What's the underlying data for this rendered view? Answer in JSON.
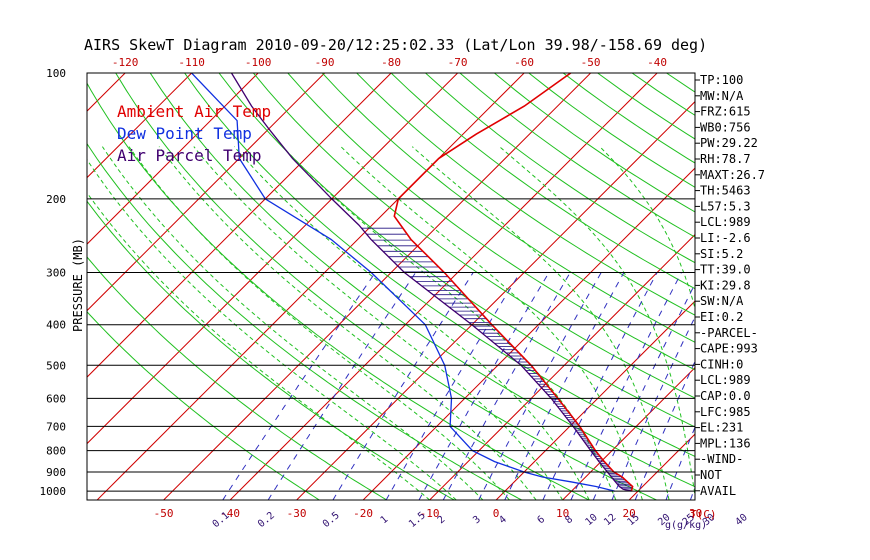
{
  "title": "AIRS SkewT Diagram 2010-09-20/12:25:02.33 (Lat/Lon 39.98/-158.69 deg)",
  "colors": {
    "temperature": "#e00000",
    "dew_point": "#1030e0",
    "parcel": "#400070",
    "isotherm": "#d00000",
    "dry_adiabat": "#20c020",
    "moist_adiabat": "#20c020",
    "mixing_ratio": "#3030c0",
    "isobar": "#000000"
  },
  "chart_data": {
    "type": "line",
    "title": "AIRS SkewT Diagram 2010-09-20/12:25:02.33 (Lat/Lon 39.98/-158.69 deg)",
    "ylabel": "PRESSURE (MB)",
    "xlabel": "T(C)",
    "mixing_ratio_unit": "g(g/kg)",
    "y_scale": "log",
    "ylim": [
      1050,
      100
    ],
    "pressure_ticks": [
      100,
      200,
      300,
      400,
      500,
      600,
      700,
      800,
      900,
      1000
    ],
    "pressure_tick_labels": [
      "100",
      "200",
      "300",
      "400",
      "500",
      "600",
      "700",
      "800",
      "900",
      "1000"
    ],
    "top_temp_ticks": [
      -120,
      -110,
      -100,
      -90,
      -80,
      -70,
      -60,
      -50,
      -40
    ],
    "top_temp_tick_labels": [
      "-120",
      "-110",
      "-100",
      "-90",
      "-80",
      "-70",
      "-60",
      "-50",
      "-40"
    ],
    "bottom_temp_ticks": [
      -50,
      -40,
      -30,
      -20,
      -10,
      0,
      10,
      20,
      30
    ],
    "bottom_temp_tick_labels": [
      "-50",
      "-40",
      "-30",
      "-20",
      "-10",
      "0",
      "10",
      "20",
      "30"
    ],
    "mixing_ratio_values": [
      0.1,
      0.2,
      0.5,
      1,
      1.5,
      2,
      3,
      4,
      6,
      8,
      10,
      12,
      15,
      20,
      25,
      30,
      40
    ],
    "mixing_ratio_labels": [
      "0.1",
      "0.2",
      "0.5",
      "1",
      "1.5",
      "2",
      "3",
      "4",
      "6",
      "8",
      "10",
      "12",
      "15",
      "20",
      "25",
      "30",
      "40"
    ],
    "legend": [
      {
        "label": "Ambient Air Temp",
        "color": "#e00000"
      },
      {
        "label": "Dew Point Temp",
        "color": "#1030e0"
      },
      {
        "label": "Air Parcel Temp",
        "color": "#400070"
      }
    ],
    "series": [
      {
        "name": "Ambient Air Temp",
        "points": [
          {
            "p": 1000,
            "t": 19.0
          },
          {
            "p": 975,
            "t": 18.5
          },
          {
            "p": 950,
            "t": 17.0
          },
          {
            "p": 925,
            "t": 15.5
          },
          {
            "p": 900,
            "t": 13.5
          },
          {
            "p": 850,
            "t": 10.5
          },
          {
            "p": 800,
            "t": 7.5
          },
          {
            "p": 700,
            "t": 1.5
          },
          {
            "p": 600,
            "t": -6.0
          },
          {
            "p": 500,
            "t": -15.0
          },
          {
            "p": 400,
            "t": -27.0
          },
          {
            "p": 300,
            "t": -42.0
          },
          {
            "p": 250,
            "t": -52.0
          },
          {
            "p": 220,
            "t": -58.0
          },
          {
            "p": 200,
            "t": -60.0
          },
          {
            "p": 160,
            "t": -60.0
          },
          {
            "p": 140,
            "t": -58.0
          },
          {
            "p": 120,
            "t": -55.0
          },
          {
            "p": 100,
            "t": -53.0
          }
        ]
      },
      {
        "name": "Dew Point Temp",
        "points": [
          {
            "p": 1000,
            "t": 16.5
          },
          {
            "p": 975,
            "t": 13.0
          },
          {
            "p": 950,
            "t": 8.5
          },
          {
            "p": 925,
            "t": 3.5
          },
          {
            "p": 900,
            "t": 0.0
          },
          {
            "p": 850,
            "t": -6.0
          },
          {
            "p": 800,
            "t": -11.0
          },
          {
            "p": 700,
            "t": -18.0
          },
          {
            "p": 600,
            "t": -22.0
          },
          {
            "p": 500,
            "t": -28.0
          },
          {
            "p": 400,
            "t": -37.0
          },
          {
            "p": 300,
            "t": -53.0
          },
          {
            "p": 250,
            "t": -64.0
          },
          {
            "p": 200,
            "t": -80.0
          },
          {
            "p": 160,
            "t": -90.0
          },
          {
            "p": 130,
            "t": -96.0
          },
          {
            "p": 100,
            "t": -110.0
          }
        ]
      },
      {
        "name": "Air Parcel Temp",
        "points": [
          {
            "p": 1000,
            "t": 19.0
          },
          {
            "p": 990,
            "t": 17.5
          },
          {
            "p": 975,
            "t": 16.5
          },
          {
            "p": 950,
            "t": 15.2
          },
          {
            "p": 900,
            "t": 12.5
          },
          {
            "p": 850,
            "t": 9.7
          },
          {
            "p": 800,
            "t": 6.8
          },
          {
            "p": 700,
            "t": 0.5
          },
          {
            "p": 600,
            "t": -7.0
          },
          {
            "p": 500,
            "t": -16.5
          },
          {
            "p": 400,
            "t": -30.0
          },
          {
            "p": 300,
            "t": -48.0
          },
          {
            "p": 250,
            "t": -58.0
          },
          {
            "p": 231,
            "t": -62.0
          },
          {
            "p": 200,
            "t": -70.0
          },
          {
            "p": 160,
            "t": -82.0
          },
          {
            "p": 136,
            "t": -90.0
          },
          {
            "p": 120,
            "t": -96.0
          },
          {
            "p": 100,
            "t": -104.0
          }
        ]
      }
    ]
  },
  "indices": [
    "TP:100",
    "MW:N/A",
    "FRZ:615",
    "WB0:756",
    "PW:29.22",
    "RH:78.7",
    "MAXT:26.7",
    "TH:5463",
    "L57:5.3",
    "LCL:989",
    "LI:-2.6",
    "SI:5.2",
    "TT:39.0",
    "KI:29.8",
    "SW:N/A",
    "EI:0.2",
    "-PARCEL-",
    "CAPE:993",
    "CINH:0",
    "LCL:989",
    "CAP:0.0",
    "LFC:985",
    "EL:231",
    "MPL:136",
    "-WIND-",
    "NOT",
    "AVAIL"
  ]
}
